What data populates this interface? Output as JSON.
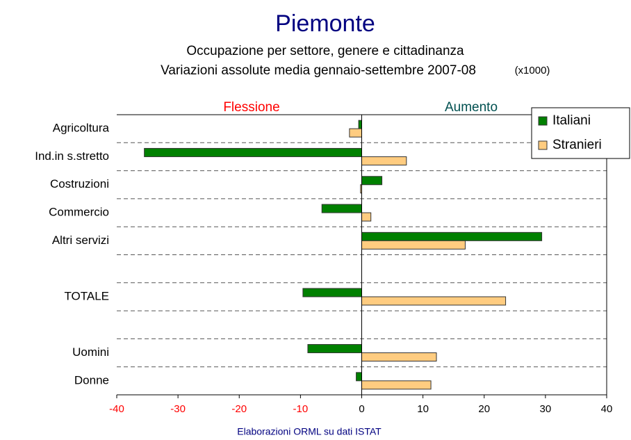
{
  "chart_data": {
    "type": "hbar",
    "title": "Piemonte",
    "subtitle": [
      "Occupazione per settore, genere e cittadinanza",
      "Variazioni assolute media gennaio-settembre 2007-08"
    ],
    "unit_note": "(x1000)",
    "annotations": {
      "left": "Flessione",
      "right": "Aumento"
    },
    "source": "Elaborazioni ORML su dati ISTAT",
    "categories": [
      "Agricoltura",
      "Ind.in s.stretto",
      "Costruzioni",
      "Commercio",
      "Altri servizi",
      null,
      "TOTALE",
      null,
      "Uomini",
      "Donne"
    ],
    "series": [
      {
        "name": "Italiani",
        "color": "#008000",
        "values": [
          -0.5,
          -35.5,
          3.3,
          -6.5,
          29.4,
          null,
          -9.6,
          null,
          -8.8,
          -0.9
        ]
      },
      {
        "name": "Stranieri",
        "color": "#ffcc80",
        "values": [
          -2.0,
          7.3,
          -0.2,
          1.5,
          16.9,
          null,
          23.5,
          null,
          12.2,
          11.3
        ]
      }
    ],
    "xlim": [
      -40,
      40
    ],
    "xticks": [
      -40,
      -30,
      -20,
      -10,
      0,
      10,
      20,
      30,
      40
    ],
    "negative_tick_color": "#ff0000",
    "legend": "top-right"
  }
}
